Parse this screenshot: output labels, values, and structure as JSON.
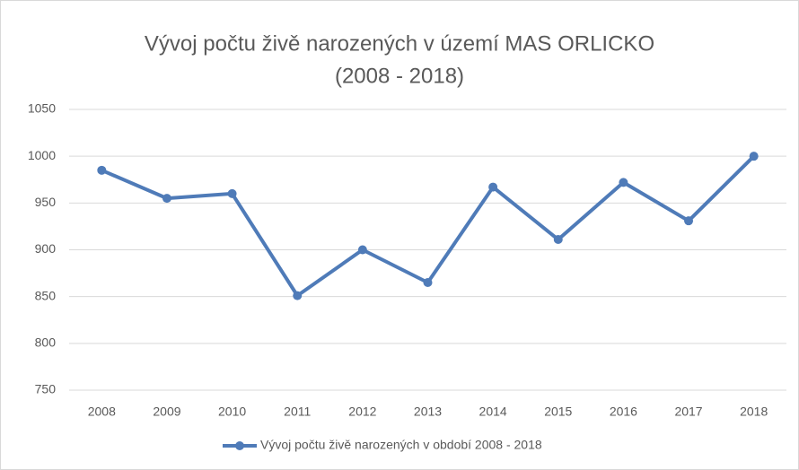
{
  "chart_data": {
    "type": "line",
    "title": [
      "Vývoj počtu živě narozených v území MAS ORLICKO",
      "(2008 - 2018)"
    ],
    "categories": [
      "2008",
      "2009",
      "2010",
      "2011",
      "2012",
      "2013",
      "2014",
      "2015",
      "2016",
      "2017",
      "2018"
    ],
    "series": [
      {
        "name": "Vývoj počtu živě narozených v období 2008 - 2018",
        "color": "#4f7bb8",
        "values": [
          985,
          955,
          960,
          851,
          900,
          865,
          967,
          911,
          972,
          931,
          1000
        ]
      }
    ],
    "ylim": [
      750,
      1050
    ],
    "yticks": [
      750,
      800,
      850,
      900,
      950,
      1000,
      1050
    ],
    "grid": true,
    "legend": "bottom"
  }
}
